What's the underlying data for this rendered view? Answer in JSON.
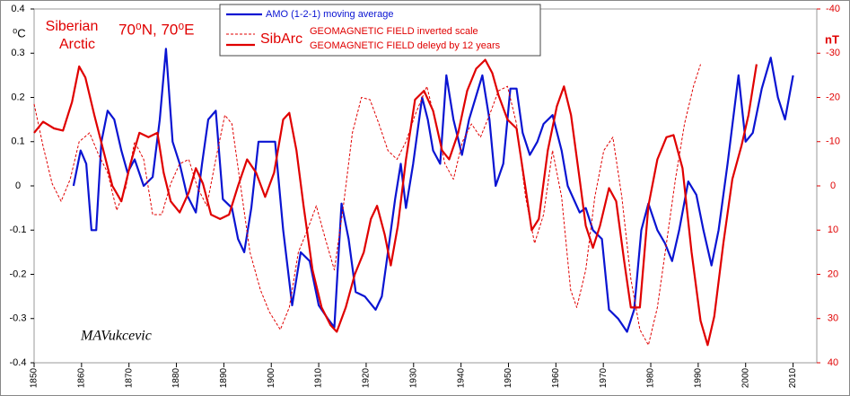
{
  "chart_data": {
    "type": "line",
    "title_lines": [
      "Siberian",
      "Arctic"
    ],
    "location": "70⁰N, 70⁰E",
    "ylabel": "⁰C",
    "y2label": "nT",
    "legend_label": "SibArc",
    "author": "MAVukcevic",
    "grid": false,
    "xlim": [
      1850,
      2015
    ],
    "xticks": [
      1850,
      1860,
      1870,
      1880,
      1890,
      1900,
      1910,
      1920,
      1930,
      1940,
      1950,
      1960,
      1970,
      1980,
      1990,
      2000,
      2010
    ],
    "ylim": [
      -0.4,
      0.4
    ],
    "yticks": [
      0.4,
      0.3,
      0.2,
      0.1,
      0,
      -0.1,
      -0.2,
      -0.3,
      -0.4
    ],
    "y2lim": [
      40,
      -40
    ],
    "y2ticks": [
      -40,
      -30,
      -20,
      -10,
      0,
      10,
      20,
      30,
      40
    ],
    "series": [
      {
        "name": "AMO (1-2-1) moving average",
        "color": "#0a14d2",
        "style": "solid",
        "axis": "y",
        "x": [
          1858.3,
          1859.8,
          1861,
          1862.1,
          1863.1,
          1864.2,
          1865.5,
          1866.9,
          1868.4,
          1869.7,
          1871.2,
          1873.1,
          1875,
          1876.5,
          1877.8,
          1879.2,
          1880.7,
          1882.2,
          1884.1,
          1885.4,
          1886.7,
          1888.3,
          1889.8,
          1891.7,
          1893,
          1894.3,
          1895.8,
          1897.3,
          1899.2,
          1900.8,
          1902.5,
          1904.4,
          1906.2,
          1908.1,
          1910,
          1911.9,
          1913.3,
          1914.8,
          1916.3,
          1917.8,
          1919.7,
          1922,
          1923.3,
          1924.6,
          1926.1,
          1927.3,
          1928.4,
          1929.9,
          1931.8,
          1933,
          1934.1,
          1935.6,
          1936.9,
          1938.4,
          1940.2,
          1941.7,
          1944.5,
          1946,
          1947.3,
          1948.9,
          1950.4,
          1951.7,
          1953,
          1954.5,
          1956.1,
          1957.4,
          1959.3,
          1961.2,
          1962.5,
          1965,
          1966.3,
          1967.8,
          1969.7,
          1971.2,
          1973.1,
          1975,
          1976.5,
          1978,
          1979.5,
          1981.4,
          1983,
          1984.5,
          1986,
          1987.9,
          1989.6,
          1991.1,
          1992.8,
          1994.3,
          1996.2,
          1998.5,
          2000,
          2001.5,
          2003.4,
          2005.3,
          2006.8,
          2008.3,
          2010
        ],
        "values": [
          0.0,
          0.08,
          0.05,
          -0.1,
          -0.1,
          0.1,
          0.17,
          0.15,
          0.08,
          0.03,
          0.06,
          0.0,
          0.02,
          0.15,
          0.31,
          0.1,
          0.05,
          -0.02,
          -0.06,
          0.05,
          0.15,
          0.17,
          -0.03,
          -0.05,
          -0.12,
          -0.15,
          -0.05,
          0.1,
          0.1,
          0.1,
          -0.1,
          -0.27,
          -0.15,
          -0.17,
          -0.27,
          -0.3,
          -0.32,
          -0.04,
          -0.12,
          -0.24,
          -0.25,
          -0.28,
          -0.25,
          -0.15,
          -0.03,
          0.05,
          -0.05,
          0.05,
          0.2,
          0.15,
          0.08,
          0.05,
          0.25,
          0.15,
          0.07,
          0.15,
          0.25,
          0.15,
          0.0,
          0.05,
          0.22,
          0.22,
          0.12,
          0.07,
          0.1,
          0.14,
          0.16,
          0.08,
          0.0,
          -0.06,
          -0.05,
          -0.1,
          -0.12,
          -0.28,
          -0.3,
          -0.33,
          -0.28,
          -0.1,
          -0.04,
          -0.1,
          -0.13,
          -0.17,
          -0.1,
          0.01,
          -0.02,
          -0.1,
          -0.18,
          -0.1,
          0.05,
          0.25,
          0.1,
          0.12,
          0.22,
          0.29,
          0.2,
          0.15,
          0.25
        ]
      },
      {
        "name": "GEOMAGNETIC FIELD inverted scale",
        "color": "#e00000",
        "style": "dashed",
        "axis": "y2",
        "x": [
          1850,
          1851.9,
          1853.8,
          1855.7,
          1857.6,
          1859.5,
          1861.7,
          1863.6,
          1865.5,
          1867.4,
          1869.3,
          1871.2,
          1873.1,
          1875,
          1876.9,
          1878.8,
          1880.7,
          1882.6,
          1884.5,
          1886.4,
          1888.3,
          1890.2,
          1891.7,
          1893.6,
          1895.5,
          1897.7,
          1899.6,
          1901.9,
          1903.8,
          1905.7,
          1907.6,
          1909.5,
          1911.4,
          1913.3,
          1915.2,
          1917.1,
          1919,
          1920.8,
          1922.7,
          1924.6,
          1926.5,
          1928.4,
          1930.3,
          1932.8,
          1934.7,
          1936.6,
          1938.4,
          1940.3,
          1942.2,
          1944.1,
          1946,
          1947.9,
          1949.8,
          1951.7,
          1953.6,
          1955.5,
          1957.4,
          1959.3,
          1961.2,
          1963.1,
          1964.4,
          1966.3,
          1968.2,
          1970.1,
          1972,
          1973.9,
          1975.8,
          1977.7,
          1979.5,
          1981.4,
          1983.3,
          1985.2,
          1987.1,
          1989,
          1990.5
        ],
        "values": [
          -18.5,
          -9,
          -0.5,
          3.5,
          -1.5,
          -10,
          -12,
          -7,
          -3,
          5.5,
          0.5,
          -10,
          -6,
          6.5,
          6.5,
          -0.5,
          -5,
          -6,
          0.5,
          4.5,
          -6,
          -16,
          -14,
          0.5,
          15,
          23.5,
          28.5,
          32.5,
          27.5,
          15,
          10,
          4.5,
          12,
          19,
          4.5,
          -12,
          -20,
          -19.5,
          -14,
          -8,
          -6,
          -10,
          -16,
          -22.5,
          -14,
          -5,
          -1.5,
          -10,
          -14,
          -11,
          -16,
          -21.5,
          -22.5,
          -14,
          2.5,
          13,
          6.5,
          -8,
          2.5,
          23.5,
          27.5,
          19,
          2.5,
          -8,
          -11,
          2.5,
          21,
          32.5,
          36,
          27.5,
          13,
          -1.5,
          -14,
          -22.5,
          -27.5
        ]
      },
      {
        "name": "GEOMAGNETIC FIELD deleyd by 12 years",
        "color": "#e00000",
        "style": "solid",
        "axis": "y2",
        "x": [
          1850,
          1851.9,
          1854.2,
          1856.1,
          1858,
          1859.5,
          1860.8,
          1862.7,
          1864.6,
          1866.5,
          1868.4,
          1870.3,
          1872.2,
          1874.1,
          1876,
          1877.3,
          1878.8,
          1880.7,
          1882.6,
          1884.1,
          1885.6,
          1887.3,
          1889.2,
          1891.1,
          1893,
          1894.9,
          1896.8,
          1898.7,
          1900.6,
          1902.5,
          1903.8,
          1905.3,
          1906.8,
          1908.7,
          1910.6,
          1912.5,
          1913.8,
          1915.7,
          1917.6,
          1919.5,
          1921,
          1922.3,
          1923.9,
          1925.2,
          1926.7,
          1928.4,
          1930.3,
          1932.2,
          1934.1,
          1936,
          1937.5,
          1939.4,
          1941.3,
          1943.2,
          1945.1,
          1946.6,
          1947.9,
          1949.8,
          1951.7,
          1953.6,
          1954.9,
          1956.4,
          1958.3,
          1960.2,
          1961.7,
          1963.2,
          1965,
          1966.3,
          1967.8,
          1969.3,
          1971.2,
          1972.7,
          1974.4,
          1975.8,
          1977.7,
          1979.5,
          1981.4,
          1983.3,
          1984.8,
          1986.7,
          1988.6,
          1990.5,
          1992,
          1993.4,
          1995.3,
          1997.2,
          1999.1,
          2000.6,
          2002.3
        ],
        "values": [
          -12,
          -14.5,
          -13,
          -12.5,
          -19,
          -27,
          -24.5,
          -16,
          -8,
          0,
          3.5,
          -5,
          -12,
          -11,
          -12,
          -3,
          3.5,
          6,
          1.5,
          -4,
          -0.5,
          6.5,
          7.5,
          6.5,
          0,
          -6,
          -3,
          2.5,
          -3,
          -15,
          -16.5,
          -8,
          4.5,
          19,
          27.5,
          31.5,
          33,
          27.5,
          20,
          15,
          7.5,
          4.5,
          11,
          18,
          9,
          -6,
          -19.5,
          -21.5,
          -17,
          -8,
          -6,
          -12,
          -21.5,
          -26.5,
          -28.5,
          -25.5,
          -20.5,
          -15,
          -13,
          0.5,
          10,
          7.5,
          -8,
          -18,
          -22.5,
          -16,
          -1.5,
          9,
          14,
          9,
          0.5,
          3.5,
          17,
          27.5,
          27.5,
          4.5,
          -6,
          -11,
          -11.5,
          -4,
          15,
          30.5,
          36,
          29.5,
          13,
          -1.5,
          -9,
          -16,
          -27.5
        ]
      }
    ]
  }
}
